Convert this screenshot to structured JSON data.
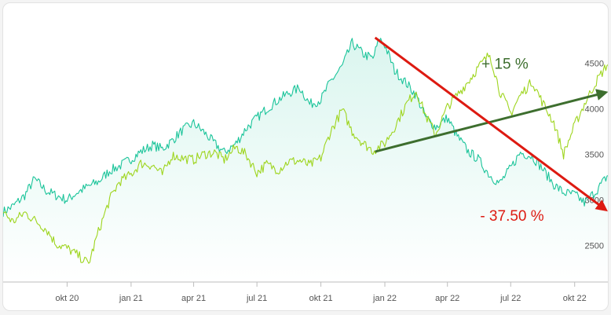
{
  "chart_data": {
    "type": "line",
    "title": "",
    "xlabel": "",
    "ylabel": "",
    "x_range": [
      "2020-07-01",
      "2022-11-20"
    ],
    "ylim": [
      2100,
      4900
    ],
    "x_ticks": [
      {
        "date": "2020-10-01",
        "label": "okt 20"
      },
      {
        "date": "2021-01-01",
        "label": "jan 21"
      },
      {
        "date": "2021-04-01",
        "label": "apr 21"
      },
      {
        "date": "2021-07-01",
        "label": "jul 21"
      },
      {
        "date": "2021-10-01",
        "label": "okt 21"
      },
      {
        "date": "2022-01-01",
        "label": "jan 22"
      },
      {
        "date": "2022-04-01",
        "label": "apr 22"
      },
      {
        "date": "2022-07-01",
        "label": "jul 22"
      },
      {
        "date": "2022-10-01",
        "label": "okt 22"
      }
    ],
    "y_ticks": [
      2500,
      3000,
      3500,
      4000,
      4500
    ],
    "y_axis_position": "right",
    "grid": false,
    "legend": "none",
    "series": [
      {
        "color": "#1bc49a",
        "fill": true,
        "points": [
          [
            "2020-07-01",
            2870
          ],
          [
            "2020-07-15",
            2930
          ],
          [
            "2020-08-01",
            3050
          ],
          [
            "2020-08-15",
            3230
          ],
          [
            "2020-09-01",
            3100
          ],
          [
            "2020-09-15",
            3050
          ],
          [
            "2020-10-01",
            3000
          ],
          [
            "2020-10-15",
            3080
          ],
          [
            "2020-11-01",
            3150
          ],
          [
            "2020-11-15",
            3200
          ],
          [
            "2020-12-01",
            3320
          ],
          [
            "2020-12-15",
            3370
          ],
          [
            "2021-01-01",
            3450
          ],
          [
            "2021-01-15",
            3530
          ],
          [
            "2021-02-01",
            3600
          ],
          [
            "2021-02-15",
            3560
          ],
          [
            "2021-03-01",
            3650
          ],
          [
            "2021-03-15",
            3760
          ],
          [
            "2021-04-01",
            3840
          ],
          [
            "2021-04-15",
            3750
          ],
          [
            "2021-05-01",
            3620
          ],
          [
            "2021-05-15",
            3520
          ],
          [
            "2021-06-01",
            3620
          ],
          [
            "2021-06-15",
            3780
          ],
          [
            "2021-07-01",
            3900
          ],
          [
            "2021-07-15",
            4000
          ],
          [
            "2021-08-01",
            4100
          ],
          [
            "2021-08-15",
            4170
          ],
          [
            "2021-09-01",
            4230
          ],
          [
            "2021-09-15",
            4050
          ],
          [
            "2021-10-01",
            4100
          ],
          [
            "2021-10-15",
            4300
          ],
          [
            "2021-11-01",
            4470
          ],
          [
            "2021-11-15",
            4720
          ],
          [
            "2021-12-01",
            4600
          ],
          [
            "2021-12-15",
            4550
          ],
          [
            "2021-12-24",
            4770
          ],
          [
            "2022-01-01",
            4700
          ],
          [
            "2022-01-15",
            4420
          ],
          [
            "2022-02-01",
            4280
          ],
          [
            "2022-02-15",
            4150
          ],
          [
            "2022-03-01",
            3900
          ],
          [
            "2022-03-15",
            3800
          ],
          [
            "2022-04-01",
            3900
          ],
          [
            "2022-04-15",
            3700
          ],
          [
            "2022-05-01",
            3530
          ],
          [
            "2022-05-15",
            3450
          ],
          [
            "2022-06-01",
            3270
          ],
          [
            "2022-06-15",
            3180
          ],
          [
            "2022-07-01",
            3350
          ],
          [
            "2022-07-15",
            3520
          ],
          [
            "2022-08-01",
            3480
          ],
          [
            "2022-08-15",
            3350
          ],
          [
            "2022-09-01",
            3170
          ],
          [
            "2022-09-15",
            3080
          ],
          [
            "2022-10-01",
            3060
          ],
          [
            "2022-10-15",
            2970
          ],
          [
            "2022-11-01",
            3100
          ],
          [
            "2022-11-20",
            3290
          ]
        ]
      },
      {
        "color": "#9ed51e",
        "fill": false,
        "points": [
          [
            "2020-07-01",
            2870
          ],
          [
            "2020-07-15",
            2760
          ],
          [
            "2020-08-01",
            2860
          ],
          [
            "2020-08-15",
            2780
          ],
          [
            "2020-09-01",
            2680
          ],
          [
            "2020-09-15",
            2520
          ],
          [
            "2020-10-01",
            2470
          ],
          [
            "2020-10-15",
            2400
          ],
          [
            "2020-11-01",
            2300
          ],
          [
            "2020-11-15",
            2650
          ],
          [
            "2020-12-01",
            3000
          ],
          [
            "2020-12-15",
            3200
          ],
          [
            "2021-01-01",
            3280
          ],
          [
            "2021-01-15",
            3400
          ],
          [
            "2021-02-01",
            3380
          ],
          [
            "2021-02-15",
            3280
          ],
          [
            "2021-03-01",
            3490
          ],
          [
            "2021-03-15",
            3460
          ],
          [
            "2021-04-01",
            3440
          ],
          [
            "2021-04-15",
            3500
          ],
          [
            "2021-05-01",
            3520
          ],
          [
            "2021-05-15",
            3440
          ],
          [
            "2021-06-01",
            3580
          ],
          [
            "2021-06-15",
            3500
          ],
          [
            "2021-07-01",
            3300
          ],
          [
            "2021-07-15",
            3390
          ],
          [
            "2021-08-01",
            3330
          ],
          [
            "2021-08-15",
            3420
          ],
          [
            "2021-09-01",
            3430
          ],
          [
            "2021-09-15",
            3380
          ],
          [
            "2021-10-01",
            3460
          ],
          [
            "2021-10-15",
            3750
          ],
          [
            "2021-11-01",
            3990
          ],
          [
            "2021-11-15",
            3750
          ],
          [
            "2021-12-01",
            3620
          ],
          [
            "2021-12-15",
            3540
          ],
          [
            "2022-01-01",
            3620
          ],
          [
            "2022-01-15",
            3800
          ],
          [
            "2022-02-01",
            4050
          ],
          [
            "2022-02-15",
            4200
          ],
          [
            "2022-03-01",
            3920
          ],
          [
            "2022-03-15",
            3720
          ],
          [
            "2022-04-01",
            4020
          ],
          [
            "2022-04-15",
            4150
          ],
          [
            "2022-05-01",
            4300
          ],
          [
            "2022-05-15",
            4450
          ],
          [
            "2022-06-01",
            4600
          ],
          [
            "2022-06-15",
            4200
          ],
          [
            "2022-07-01",
            3950
          ],
          [
            "2022-07-15",
            4150
          ],
          [
            "2022-08-01",
            4300
          ],
          [
            "2022-08-15",
            4080
          ],
          [
            "2022-09-01",
            3850
          ],
          [
            "2022-09-15",
            3500
          ],
          [
            "2022-10-01",
            3820
          ],
          [
            "2022-10-15",
            4050
          ],
          [
            "2022-11-01",
            4300
          ],
          [
            "2022-11-20",
            4520
          ]
        ]
      }
    ],
    "annotations": [
      {
        "text": "+ 15 %",
        "color": "#3d6e2e",
        "from": [
          "2021-12-18",
          3530
        ],
        "to": [
          "2022-11-15",
          4180
        ],
        "text_at": [
          "2022-05-20",
          4440
        ]
      },
      {
        "text": "- 37.50 %",
        "color": "#dd1a11",
        "from": [
          "2021-12-18",
          4780
        ],
        "to": [
          "2022-11-15",
          2890
        ],
        "text_at": [
          "2022-05-18",
          2770
        ]
      }
    ]
  }
}
